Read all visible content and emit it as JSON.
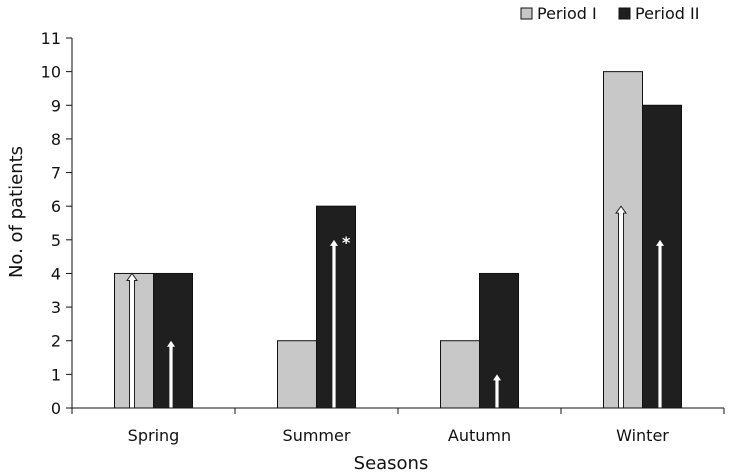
{
  "chart_data": {
    "type": "bar",
    "categories": [
      "Spring",
      "Summer",
      "Autumn",
      "Winter"
    ],
    "series": [
      {
        "name": "Period I",
        "values": [
          4,
          2,
          2,
          10
        ],
        "color": "#c8c8c8"
      },
      {
        "name": "Period II",
        "values": [
          4,
          6,
          4,
          9
        ],
        "color": "#1f1f1f"
      }
    ],
    "arrows": [
      {
        "category": "Spring",
        "series": "Period I",
        "value": 4,
        "style": "hollow"
      },
      {
        "category": "Spring",
        "series": "Period II",
        "value": 2,
        "style": "solid"
      },
      {
        "category": "Summer",
        "series": "Period II",
        "value": 5,
        "style": "solid"
      },
      {
        "category": "Autumn",
        "series": "Period II",
        "value": 1,
        "style": "solid"
      },
      {
        "category": "Winter",
        "series": "Period I",
        "value": 6,
        "style": "hollow"
      },
      {
        "category": "Winter",
        "series": "Period II",
        "value": 5,
        "style": "solid"
      }
    ],
    "annotations": [
      {
        "category": "Summer",
        "series": "Period II",
        "text": "*"
      }
    ],
    "xlabel": "Seasons",
    "ylabel": "No. of patients",
    "ylim": [
      0,
      11
    ],
    "yticks": [
      0,
      1,
      2,
      3,
      4,
      5,
      6,
      7,
      8,
      9,
      10,
      11
    ],
    "legend_position": "top-right",
    "grid": false
  }
}
